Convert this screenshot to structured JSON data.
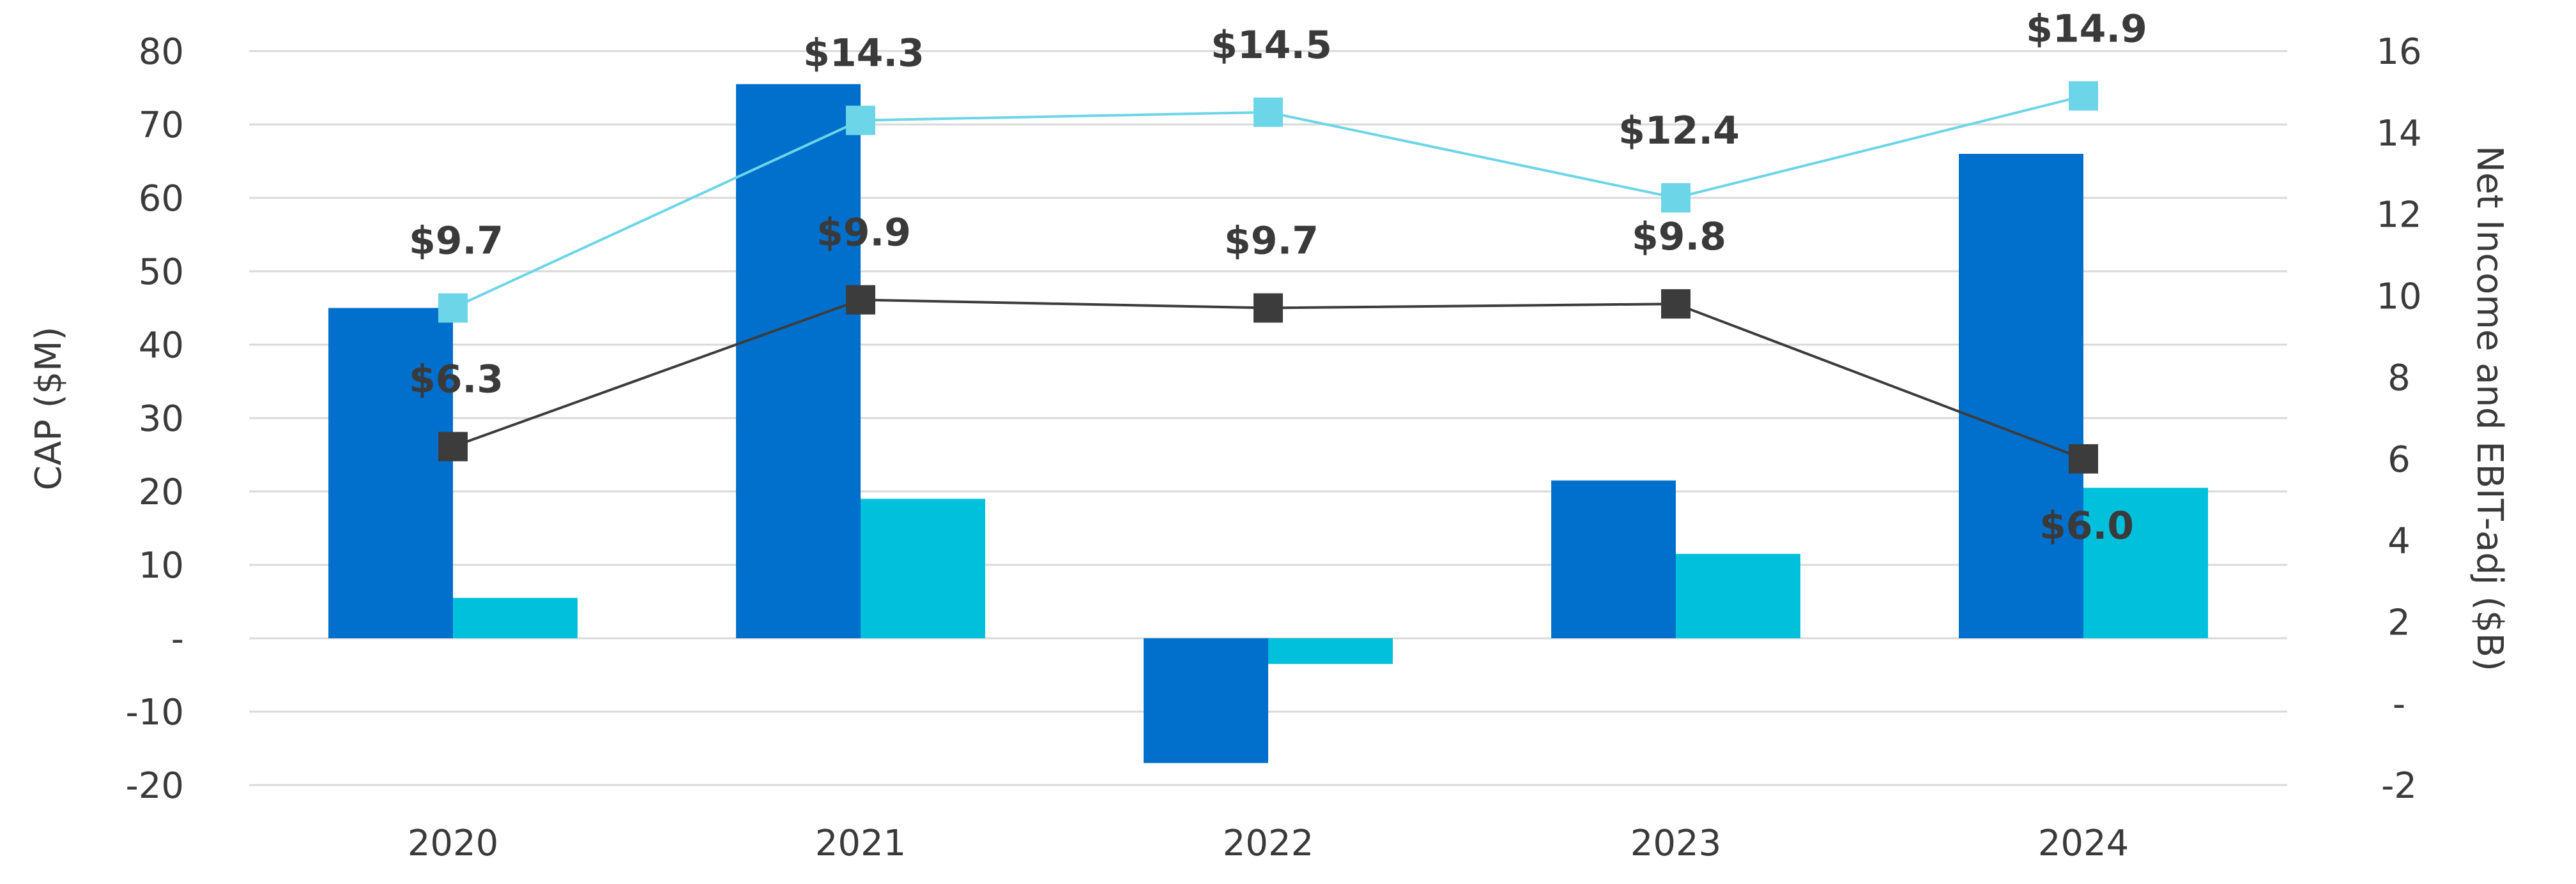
{
  "chart_data": {
    "type": "bar",
    "categories": [
      "2020",
      "2021",
      "2022",
      "2023",
      "2024"
    ],
    "y_left": {
      "label": "CAP ($M)",
      "ylim": [
        -20,
        80
      ],
      "ticks": [
        80,
        70,
        60,
        50,
        40,
        30,
        20,
        10,
        0,
        -10,
        -20
      ],
      "tick_labels": [
        "80",
        "70",
        "60",
        "50",
        "40",
        "30",
        "20",
        "10",
        "-",
        "-10",
        "-20"
      ]
    },
    "y_right": {
      "label": "Net Income and EBIT-adj ($B)",
      "ylim": [
        -2,
        16
      ],
      "ticks": [
        16,
        14,
        12,
        10,
        8,
        6,
        4,
        2,
        0,
        -2
      ],
      "tick_labels": [
        "16",
        "14",
        "12",
        "10",
        "8",
        "6",
        "4",
        "2",
        "-",
        "-2"
      ]
    },
    "grid": true,
    "bar_series": [
      {
        "axis": "left",
        "color": "#0070CC",
        "values": [
          45,
          75.5,
          -17,
          21.5,
          66
        ]
      },
      {
        "axis": "left",
        "color": "#00C0DC",
        "values": [
          5.5,
          19,
          -3.5,
          11.5,
          20.5
        ]
      }
    ],
    "line_series": [
      {
        "axis": "right",
        "color": "#6DD5E8",
        "marker": "square",
        "values": [
          9.7,
          14.3,
          14.5,
          12.4,
          14.9
        ],
        "labels": [
          "$9.7",
          "$14.3",
          "$14.5",
          "$12.4",
          "$14.9"
        ],
        "label_pos": [
          "above",
          "above",
          "above",
          "above",
          "above"
        ]
      },
      {
        "axis": "right",
        "color": "#3C3C3C",
        "marker": "square",
        "values": [
          6.3,
          9.9,
          9.7,
          9.8,
          6.0
        ],
        "labels": [
          "$6.3",
          "$9.9",
          "$9.7",
          "$9.8",
          "$6.0"
        ],
        "label_pos": [
          "above",
          "above",
          "above",
          "above",
          "below"
        ]
      }
    ]
  }
}
